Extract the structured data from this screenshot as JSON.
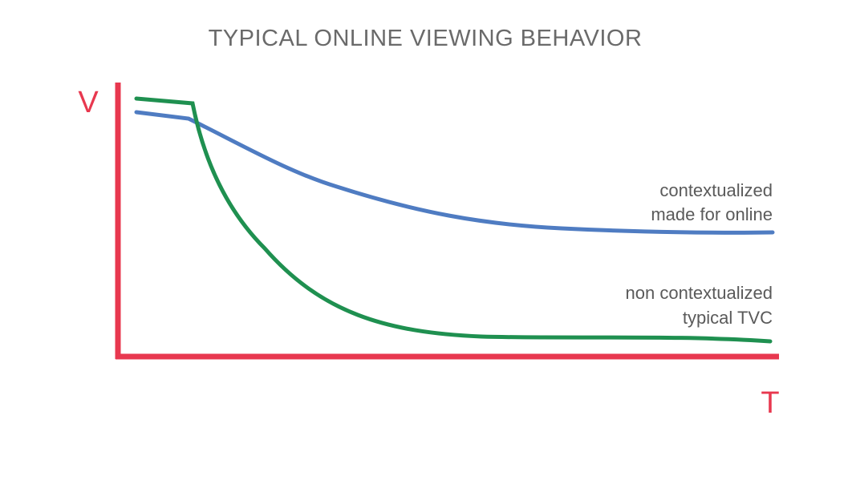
{
  "title": "TYPICAL ONLINE VIEWING BEHAVIOR",
  "axes": {
    "y_label": "V",
    "x_label": "T"
  },
  "curves": [
    {
      "label_lines": [
        "contextualized",
        "made for online"
      ]
    },
    {
      "label_lines": [
        "non contextualized",
        "typical TVC"
      ]
    }
  ]
}
